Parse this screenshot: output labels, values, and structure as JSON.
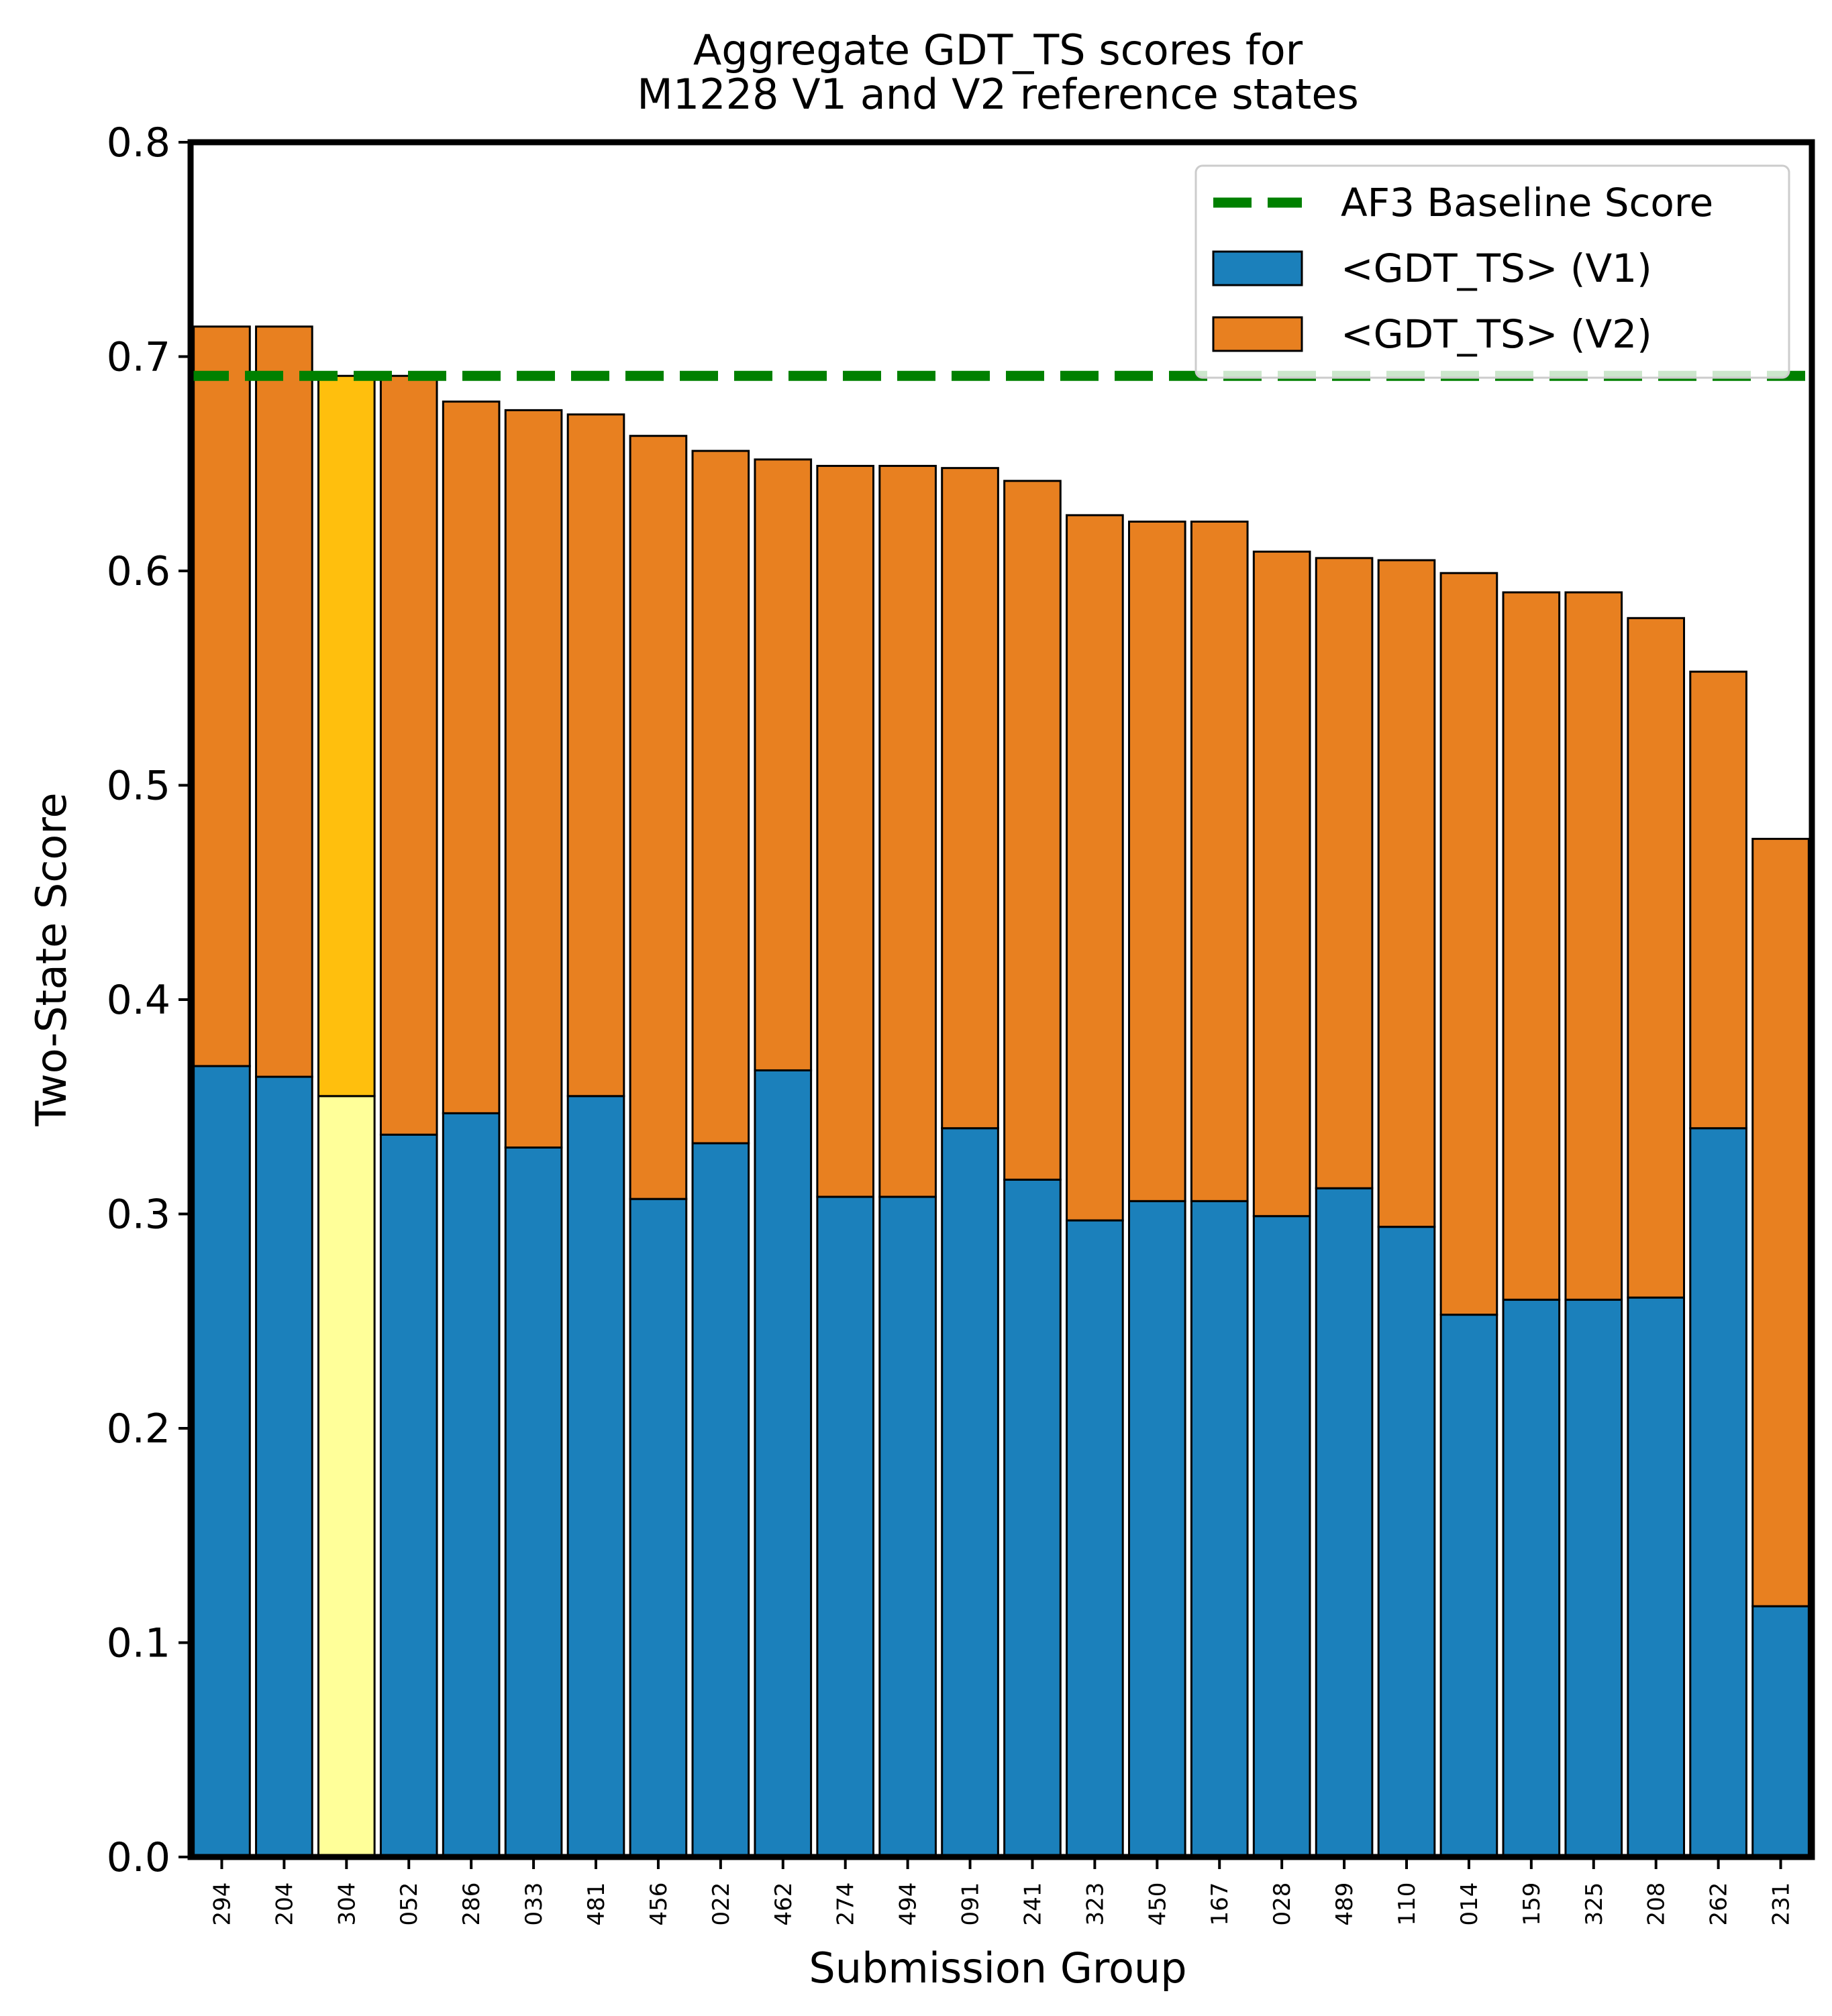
{
  "chart_data": {
    "type": "bar",
    "stacked": true,
    "title": "Aggregate GDT_TS scores for\nM1228 V1 and V2 reference states",
    "xlabel": "Submission Group",
    "ylabel": "Two-State Score",
    "ylim": [
      0,
      0.8
    ],
    "yticks": [
      0.0,
      0.1,
      0.2,
      0.3,
      0.4,
      0.5,
      0.6,
      0.7,
      0.8
    ],
    "ytick_labels": [
      "0.0",
      "0.1",
      "0.2",
      "0.3",
      "0.4",
      "0.5",
      "0.6",
      "0.7",
      "0.8"
    ],
    "grid": false,
    "legend_position": "top-right",
    "categories": [
      "294",
      "204",
      "304",
      "052",
      "286",
      "033",
      "481",
      "456",
      "022",
      "462",
      "274",
      "494",
      "091",
      "241",
      "323",
      "450",
      "167",
      "028",
      "489",
      "110",
      "014",
      "159",
      "325",
      "208",
      "262",
      "231"
    ],
    "series": [
      {
        "name": "<GDT_TS> (V1)",
        "color": "#1b80bb",
        "values": [
          0.369,
          0.364,
          0.355,
          0.337,
          0.347,
          0.331,
          0.355,
          0.307,
          0.333,
          0.367,
          0.308,
          0.308,
          0.34,
          0.316,
          0.297,
          0.306,
          0.306,
          0.299,
          0.312,
          0.294,
          0.253,
          0.26,
          0.26,
          0.261,
          0.34,
          0.117
        ]
      },
      {
        "name": "<GDT_TS> (V2)",
        "color": "#e88020",
        "values": [
          0.345,
          0.35,
          0.336,
          0.354,
          0.332,
          0.344,
          0.318,
          0.356,
          0.323,
          0.285,
          0.341,
          0.341,
          0.308,
          0.326,
          0.329,
          0.317,
          0.317,
          0.31,
          0.294,
          0.311,
          0.346,
          0.33,
          0.33,
          0.317,
          0.213,
          0.358
        ]
      }
    ],
    "highlight": {
      "category": "304",
      "v1_color": "#ffff99",
      "v2_color": "#ffbf0d"
    },
    "baseline": {
      "name": "AF3 Baseline Score",
      "value": 0.691,
      "color": "#008000",
      "style": "dashed"
    }
  }
}
